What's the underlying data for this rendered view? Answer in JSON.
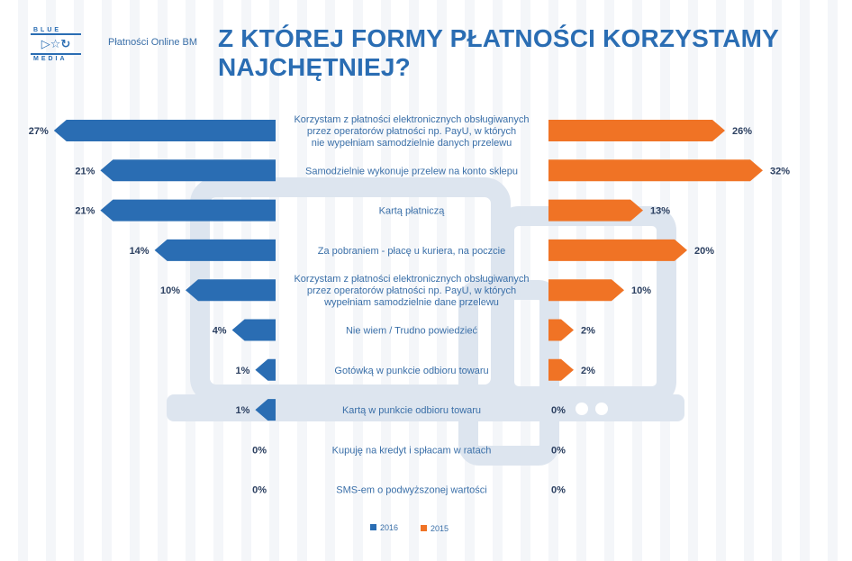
{
  "header": {
    "logo_top": "BLUE",
    "logo_bottom": "MEDIA",
    "logo_symbols": "▷☆↻",
    "brand": "Płatności Online BM",
    "title": "Z KTÓREJ FORMY PŁATNOŚCI KORZYSTAMY NAJCHĘTNIEJ?"
  },
  "colors": {
    "series_2016": "#2a6db3",
    "series_2015": "#f07325",
    "label_text": "#3a6fa8",
    "value_text": "#2b3f60",
    "background_art": "#dde5ef"
  },
  "chart_data": {
    "type": "bar",
    "orientation": "horizontal-butterfly",
    "title": "Z KTÓREJ FORMY PŁATNOŚCI KORZYSTAMY NAJCHĘTNIEJ?",
    "categories": [
      "Korzystam z płatności elektronicznych obsługiwanych przez operatorów płatności np. PayU, w których nie wypełniam samodzielnie danych przelewu",
      "Samodzielnie wykonuje przelew na konto sklepu",
      "Kartą płatniczą",
      "Za pobraniem - płacę u kuriera, na poczcie",
      "Korzystam z płatności elektronicznych obsługiwanych przez operatorów płatności np. PayU, w których wypełniam samodzielnie dane przelewu",
      "Nie wiem / Trudno powiedzieć",
      "Gotówką w punkcie odbioru towaru",
      "Kartą w punkcie odbioru towaru",
      "Kupuję na kredyt i spłacam w ratach",
      "SMS-em o podwyższonej wartości"
    ],
    "category_lines": [
      [
        "Korzystam z płatności elektronicznych obsługiwanych",
        "przez operatorów płatności np. PayU, w których",
        "nie wypełniam samodzielnie danych przelewu"
      ],
      [
        "Samodzielnie wykonuje przelew na konto sklepu"
      ],
      [
        "Kartą płatniczą"
      ],
      [
        "Za pobraniem - płacę u kuriera, na poczcie"
      ],
      [
        "Korzystam z płatności elektronicznych obsługiwanych",
        "przez operatorów płatności np. PayU, w których",
        "wypełniam samodzielnie dane przelewu"
      ],
      [
        "Nie wiem /  Trudno powiedzieć"
      ],
      [
        "Gotówką w punkcie odbioru towaru"
      ],
      [
        "Kartą w punkcie odbioru towaru"
      ],
      [
        "Kupuję na kredyt i spłacam w ratach"
      ],
      [
        "SMS-em  o podwyższonej wartości"
      ]
    ],
    "series": [
      {
        "name": "2016",
        "side": "left",
        "values": [
          27,
          21,
          21,
          14,
          10,
          4,
          1,
          1,
          0,
          0
        ],
        "labels": [
          "27%",
          "21%",
          "21%",
          "14%",
          "10%",
          "4%",
          "1%",
          "1%",
          "0%",
          "0%"
        ]
      },
      {
        "name": "2015",
        "side": "right",
        "values": [
          26,
          32,
          13,
          20,
          10,
          2,
          2,
          0,
          0,
          0
        ],
        "labels": [
          "26%",
          "32%",
          "13%",
          "20%",
          "10%",
          "2%",
          "2%",
          "0%",
          "0%",
          "0%"
        ]
      }
    ],
    "unit": "%",
    "legend": [
      "2016",
      "2015"
    ],
    "legend_position": "bottom-center"
  }
}
